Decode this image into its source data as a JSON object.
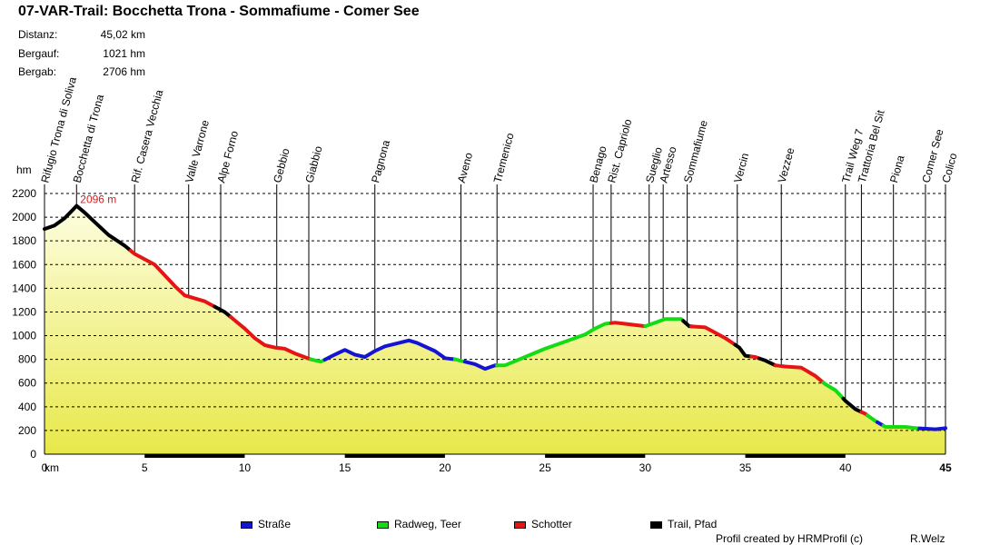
{
  "header": {
    "title": "07-VAR-Trail: Bocchetta Trona - Sommafiume - Comer See",
    "stats": [
      {
        "label": "Distanz:",
        "value": "45,02 km"
      },
      {
        "label": "Bergauf:",
        "value": "1021 hm"
      },
      {
        "label": "Bergab:",
        "value": "2706 hm"
      }
    ]
  },
  "footer": {
    "credit": "Profil created by HRMProfil (c)",
    "author": "R.Welz"
  },
  "colors": {
    "strasse": "#1414d2",
    "radweg": "#14dc14",
    "schotter": "#e61414",
    "trail": "#000000",
    "fill_top": "#fdfde0",
    "fill_bottom": "#e8e84a",
    "max_label": "#d42020"
  },
  "chart_data": {
    "type": "area",
    "xlabel": "km",
    "ylabel": "hm",
    "xlim": [
      0,
      45
    ],
    "ylim": [
      0,
      2200
    ],
    "x_ticks": [
      {
        "value": 0,
        "label": "0"
      },
      {
        "value": 5,
        "label": "5"
      },
      {
        "value": 10,
        "label": "10"
      },
      {
        "value": 15,
        "label": "15"
      },
      {
        "value": 20,
        "label": "20"
      },
      {
        "value": 25,
        "label": "25"
      },
      {
        "value": 30,
        "label": "30"
      },
      {
        "value": 35,
        "label": "35"
      },
      {
        "value": 40,
        "label": "40"
      },
      {
        "value": 45,
        "label": "45"
      }
    ],
    "y_ticks": [
      0,
      200,
      400,
      600,
      800,
      1000,
      1200,
      1400,
      1600,
      1800,
      2000,
      2200
    ],
    "grid": true,
    "max_annotation": {
      "x": 1.6,
      "y": 2096,
      "label": "2096 m"
    },
    "profile": [
      [
        0,
        1900
      ],
      [
        0.5,
        1930
      ],
      [
        1.0,
        1990
      ],
      [
        1.4,
        2060
      ],
      [
        1.6,
        2096
      ],
      [
        2.0,
        2040
      ],
      [
        2.5,
        1960
      ],
      [
        3.2,
        1850
      ],
      [
        4.0,
        1760
      ],
      [
        4.5,
        1690
      ],
      [
        5.5,
        1600
      ],
      [
        6.0,
        1510
      ],
      [
        6.5,
        1420
      ],
      [
        7.0,
        1340
      ],
      [
        8.0,
        1290
      ],
      [
        9.0,
        1200
      ],
      [
        9.5,
        1130
      ],
      [
        10.0,
        1060
      ],
      [
        10.5,
        980
      ],
      [
        11.0,
        920
      ],
      [
        11.5,
        900
      ],
      [
        12.0,
        890
      ],
      [
        12.5,
        850
      ],
      [
        13.3,
        800
      ],
      [
        13.8,
        780
      ],
      [
        14.5,
        840
      ],
      [
        15.0,
        880
      ],
      [
        15.5,
        840
      ],
      [
        16.0,
        820
      ],
      [
        16.5,
        870
      ],
      [
        17.0,
        910
      ],
      [
        18.2,
        960
      ],
      [
        18.6,
        940
      ],
      [
        19.5,
        870
      ],
      [
        20.0,
        810
      ],
      [
        20.5,
        800
      ],
      [
        21.5,
        760
      ],
      [
        22.0,
        720
      ],
      [
        22.5,
        750
      ],
      [
        23.0,
        750
      ],
      [
        24.0,
        820
      ],
      [
        25.0,
        890
      ],
      [
        26.0,
        950
      ],
      [
        27.0,
        1010
      ],
      [
        27.5,
        1060
      ],
      [
        28.0,
        1100
      ],
      [
        28.5,
        1110
      ],
      [
        29.0,
        1100
      ],
      [
        30.0,
        1080
      ],
      [
        30.5,
        1110
      ],
      [
        31.0,
        1140
      ],
      [
        31.8,
        1140
      ],
      [
        32.2,
        1080
      ],
      [
        33.0,
        1070
      ],
      [
        34.0,
        980
      ],
      [
        34.7,
        900
      ],
      [
        35.0,
        830
      ],
      [
        35.5,
        820
      ],
      [
        36.0,
        790
      ],
      [
        36.5,
        750
      ],
      [
        37.0,
        740
      ],
      [
        37.8,
        730
      ],
      [
        38.5,
        660
      ],
      [
        39.0,
        590
      ],
      [
        39.5,
        540
      ],
      [
        40.0,
        450
      ],
      [
        40.5,
        380
      ],
      [
        41.0,
        340
      ],
      [
        41.5,
        280
      ],
      [
        42.0,
        230
      ],
      [
        42.5,
        230
      ],
      [
        43.0,
        230
      ],
      [
        43.5,
        220
      ],
      [
        44.5,
        210
      ],
      [
        45.0,
        220
      ]
    ],
    "segments": [
      {
        "type": "trail",
        "from": 0,
        "to": 4.3
      },
      {
        "type": "schotter",
        "from": 4.3,
        "to": 8.5
      },
      {
        "type": "trail",
        "from": 8.5,
        "to": 9.3
      },
      {
        "type": "schotter",
        "from": 9.3,
        "to": 13.3
      },
      {
        "type": "radweg",
        "from": 13.3,
        "to": 14.0
      },
      {
        "type": "strasse",
        "from": 14.0,
        "to": 20.5
      },
      {
        "type": "radweg",
        "from": 20.5,
        "to": 21.0
      },
      {
        "type": "strasse",
        "from": 21.0,
        "to": 22.6
      },
      {
        "type": "radweg",
        "from": 22.6,
        "to": 28.3
      },
      {
        "type": "schotter",
        "from": 28.3,
        "to": 30.0
      },
      {
        "type": "radweg",
        "from": 30.0,
        "to": 31.9
      },
      {
        "type": "trail",
        "from": 31.9,
        "to": 32.3
      },
      {
        "type": "schotter",
        "from": 32.3,
        "to": 34.5
      },
      {
        "type": "trail",
        "from": 34.5,
        "to": 35.3
      },
      {
        "type": "schotter",
        "from": 35.3,
        "to": 35.7
      },
      {
        "type": "trail",
        "from": 35.7,
        "to": 36.5
      },
      {
        "type": "schotter",
        "from": 36.5,
        "to": 38.9
      },
      {
        "type": "radweg",
        "from": 38.9,
        "to": 39.9
      },
      {
        "type": "trail",
        "from": 39.9,
        "to": 40.8
      },
      {
        "type": "schotter",
        "from": 40.8,
        "to": 41.1
      },
      {
        "type": "radweg",
        "from": 41.1,
        "to": 41.6
      },
      {
        "type": "strasse",
        "from": 41.6,
        "to": 41.9
      },
      {
        "type": "radweg",
        "from": 41.9,
        "to": 43.7
      },
      {
        "type": "strasse",
        "from": 43.7,
        "to": 45.0
      }
    ],
    "bottom_bars": [
      [
        5,
        10
      ],
      [
        15,
        20
      ],
      [
        25,
        30
      ],
      [
        35,
        40
      ]
    ],
    "waypoints": [
      {
        "km": 0,
        "label": "Rifugio Trona di Soliva"
      },
      {
        "km": 1.6,
        "label": "Bocchetta di Trona"
      },
      {
        "km": 4.5,
        "label": "Rif. Casera Vecchia"
      },
      {
        "km": 7.2,
        "label": "Valle Varrone"
      },
      {
        "km": 8.8,
        "label": "Alpe Forno"
      },
      {
        "km": 11.6,
        "label": "Gebbio"
      },
      {
        "km": 13.2,
        "label": "Giabbio"
      },
      {
        "km": 16.5,
        "label": "Pagnona"
      },
      {
        "km": 20.8,
        "label": "Aveno"
      },
      {
        "km": 22.6,
        "label": "Tremenico"
      },
      {
        "km": 27.4,
        "label": "Benago"
      },
      {
        "km": 28.3,
        "label": "Rist. Capriolo"
      },
      {
        "km": 30.2,
        "label": "Sueglio"
      },
      {
        "km": 30.9,
        "label": "Artesso"
      },
      {
        "km": 32.1,
        "label": "Sommafiume"
      },
      {
        "km": 34.6,
        "label": "Vercin"
      },
      {
        "km": 36.8,
        "label": "Vezzee"
      },
      {
        "km": 40.0,
        "label": "Trail Weg 7"
      },
      {
        "km": 40.8,
        "label": "Trattoria Bel Sit"
      },
      {
        "km": 42.4,
        "label": "Piona"
      },
      {
        "km": 44.0,
        "label": "Comer See"
      },
      {
        "km": 45.0,
        "label": "Colico"
      }
    ],
    "legend": [
      {
        "key": "strasse",
        "label": "Straße"
      },
      {
        "key": "radweg",
        "label": "Radweg, Teer"
      },
      {
        "key": "schotter",
        "label": "Schotter"
      },
      {
        "key": "trail",
        "label": "Trail, Pfad"
      }
    ]
  }
}
